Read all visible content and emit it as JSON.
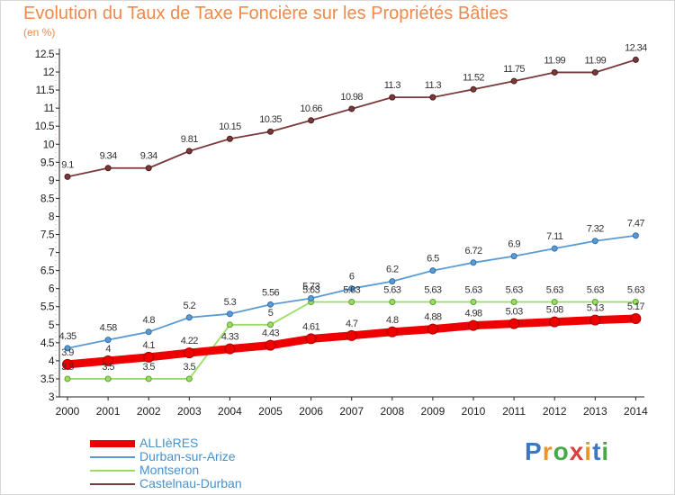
{
  "header": {
    "title": "Evolution du Taux de Taxe Foncière sur les Propriétés Bâties",
    "unit": "(en %)"
  },
  "logo": {
    "text": "Proxiti",
    "colors": [
      "#3a78c4",
      "#e8962e",
      "#4aa84a",
      "#d94040",
      "#e8962e",
      "#3a78c4",
      "#4aa84a"
    ]
  },
  "chart_data": {
    "type": "line",
    "x": [
      2000,
      2001,
      2002,
      2003,
      2004,
      2005,
      2006,
      2007,
      2008,
      2009,
      2010,
      2011,
      2012,
      2013,
      2014
    ],
    "ylim": [
      3,
      12.5
    ],
    "yticks": [
      "3",
      "3.5",
      "4",
      "4.5",
      "5",
      "5.5",
      "6",
      "6.5",
      "7",
      "7.5",
      "8",
      "8.5",
      "9",
      "9.5",
      "10",
      "10.5",
      "11",
      "11.5",
      "12",
      "12.5"
    ],
    "grid": false,
    "legend": "bottom-left",
    "series": [
      {
        "name": "ALLIèRES",
        "color": "#ee0000",
        "values": [
          3.9,
          4,
          4.1,
          4.22,
          4.33,
          4.43,
          4.61,
          4.7,
          4.8,
          4.88,
          4.98,
          5.03,
          5.08,
          5.13,
          5.17
        ],
        "labels": [
          "3.9",
          "4",
          "4.1",
          "4.22",
          "4.33",
          "4.43",
          "4.61",
          "4.7",
          "4.8",
          "4.88",
          "4.98",
          "5.03",
          "5.08",
          "5.13",
          "5.17"
        ]
      },
      {
        "name": "Durban-sur-Arize",
        "color": "#5b9bd5",
        "values": [
          4.35,
          4.58,
          4.8,
          5.2,
          5.3,
          5.56,
          5.73,
          6,
          6.2,
          6.5,
          6.72,
          6.9,
          7.11,
          7.32,
          7.47
        ],
        "labels": [
          "4.35",
          "4.58",
          "4.8",
          "5.2",
          "5.3",
          "5.56",
          "5.73",
          "6",
          "6.2",
          "6.5",
          "6.72",
          "6.9",
          "7.11",
          "7.32",
          "7.47"
        ]
      },
      {
        "name": "Montseron",
        "color": "#99dd66",
        "values": [
          3.5,
          3.5,
          3.5,
          3.5,
          5,
          5,
          5.63,
          5.63,
          5.63,
          5.63,
          5.63,
          5.63,
          5.63,
          5.63,
          5.63
        ],
        "labels": [
          "3.5",
          "3.5",
          "3.5",
          "3.5",
          "",
          "5",
          "5.63",
          "5.63",
          "5.63",
          "5.63",
          "5.63",
          "5.63",
          "5.63",
          "5.63",
          "5.63"
        ]
      },
      {
        "name": "Castelnau-Durban",
        "color": "#7a3a3a",
        "values": [
          9.1,
          9.34,
          9.34,
          9.81,
          10.15,
          10.35,
          10.66,
          10.98,
          11.3,
          11.3,
          11.52,
          11.75,
          11.99,
          11.99,
          12.34
        ],
        "labels": [
          "9.1",
          "9.34",
          "9.34",
          "9.81",
          "10.15",
          "10.35",
          "10.66",
          "10.98",
          "11.3",
          "11.3",
          "11.52",
          "11.75",
          "11.99",
          "11.99",
          "12.34"
        ]
      }
    ]
  }
}
